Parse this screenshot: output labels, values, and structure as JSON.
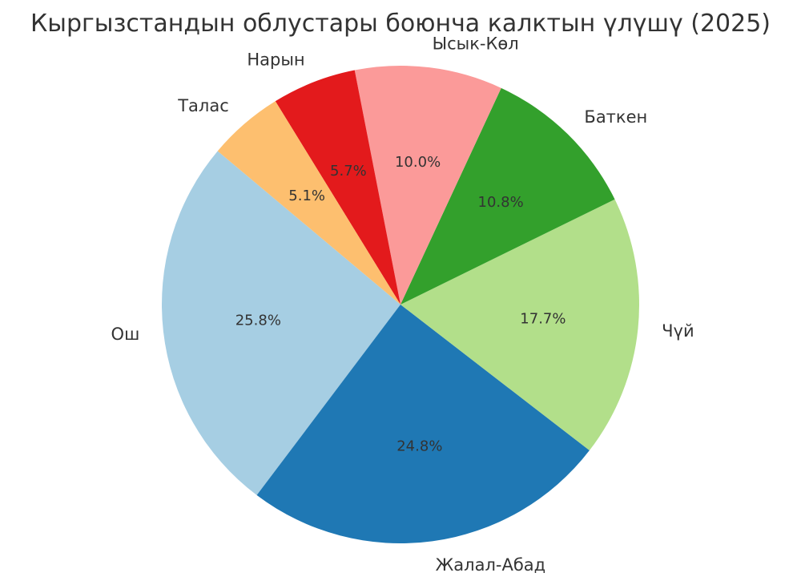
{
  "chart_data": {
    "type": "pie",
    "title": "Кыргызстандын облустары боюнча калктын үлүшү (2025)",
    "start_angle_deg": 140,
    "direction": "counterclockwise",
    "slices": [
      {
        "label": "Ош",
        "value": 25.8,
        "pct_text": "25.8%",
        "color": "#a6cee3"
      },
      {
        "label": "Жалал-Абад",
        "value": 24.8,
        "pct_text": "24.8%",
        "color": "#1f78b4"
      },
      {
        "label": "Чүй",
        "value": 17.7,
        "pct_text": "17.7%",
        "color": "#b2df8a"
      },
      {
        "label": "Баткен",
        "value": 10.8,
        "pct_text": "10.8%",
        "color": "#33a02c"
      },
      {
        "label": "Ысык-Көл",
        "value": 10.0,
        "pct_text": "10.0%",
        "color": "#fb9a99"
      },
      {
        "label": "Нарын",
        "value": 5.7,
        "pct_text": "5.7%",
        "color": "#e31a1c"
      },
      {
        "label": "Талас",
        "value": 5.1,
        "pct_text": "5.1%",
        "color": "#fdbf6f"
      }
    ]
  }
}
